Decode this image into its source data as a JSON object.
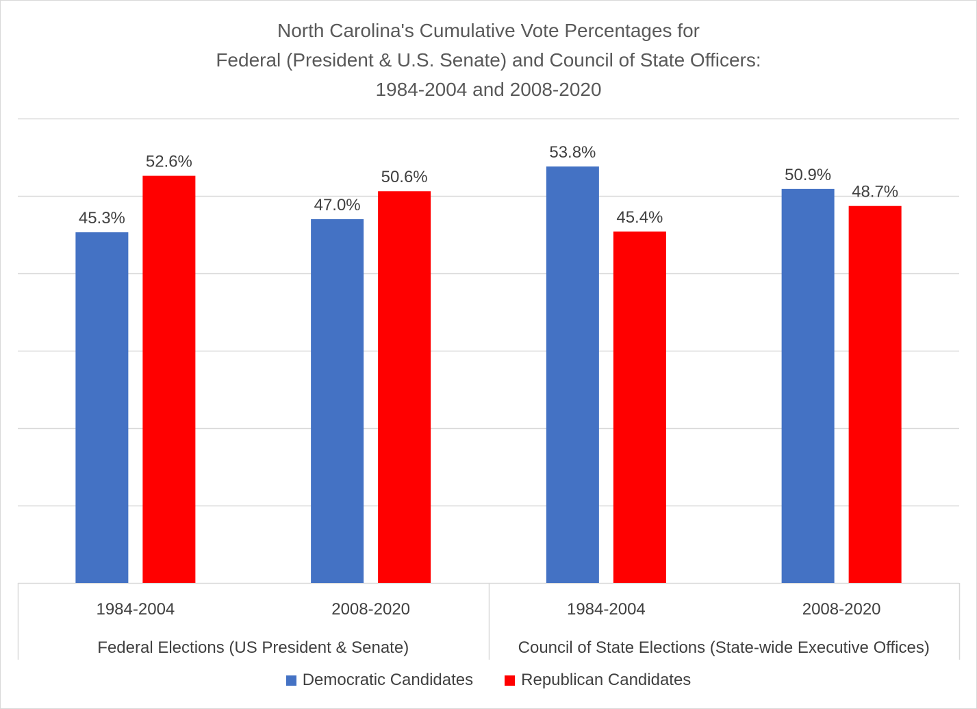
{
  "chart_data": {
    "type": "bar",
    "title_lines": [
      "North Carolina's Cumulative Vote Percentages for",
      "Federal (President & U.S. Senate) and Council of State Officers:",
      "1984-2004 and 2008-2020"
    ],
    "groups": [
      {
        "label": "Federal Elections (US President & Senate)",
        "categories": [
          "1984-2004",
          "2008-2020"
        ]
      },
      {
        "label": "Council of State Elections (State-wide Executive Offices)",
        "categories": [
          "1984-2004",
          "2008-2020"
        ]
      }
    ],
    "categories": [
      "1984-2004",
      "2008-2020",
      "1984-2004",
      "2008-2020"
    ],
    "series": [
      {
        "name": "Democratic Candidates",
        "color": "#4472c4",
        "values": [
          45.3,
          47.0,
          53.8,
          50.9
        ],
        "labels": [
          "45.3%",
          "47.0%",
          "53.8%",
          "50.9%"
        ]
      },
      {
        "name": "Republican Candidates",
        "color": "#ff0000",
        "values": [
          52.6,
          50.6,
          45.4,
          48.7
        ],
        "labels": [
          "52.6%",
          "50.6%",
          "45.4%",
          "48.7%"
        ]
      }
    ],
    "ylim": [
      0,
      60
    ],
    "grid_step": 10,
    "grid": true,
    "y_axis_labels_visible": false,
    "legend_position": "bottom"
  }
}
